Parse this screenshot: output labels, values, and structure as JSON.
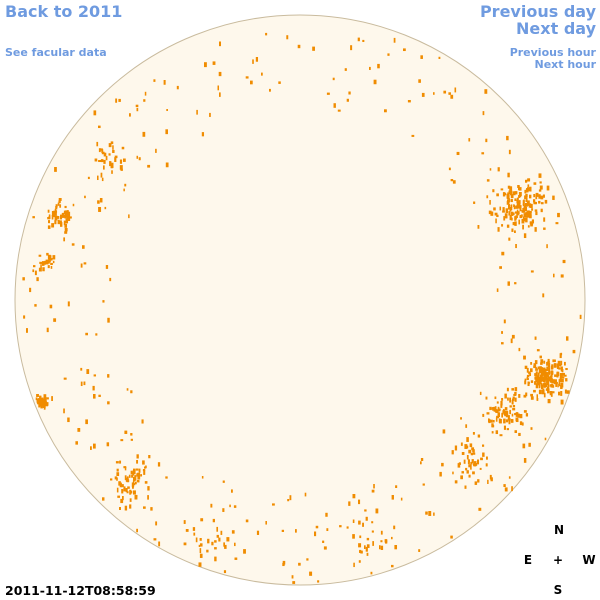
{
  "nav": {
    "back": "Back to 2011",
    "facular": "See facular data",
    "previous_day": "Previous day",
    "next_day": "Next day",
    "previous_hour": "Previous hour",
    "next_hour": "Next hour"
  },
  "timestamp": "2011-11-12T08:58:59",
  "compass": {
    "north": "N",
    "east": "E",
    "center": "+",
    "west": "W",
    "south": "S"
  }
}
